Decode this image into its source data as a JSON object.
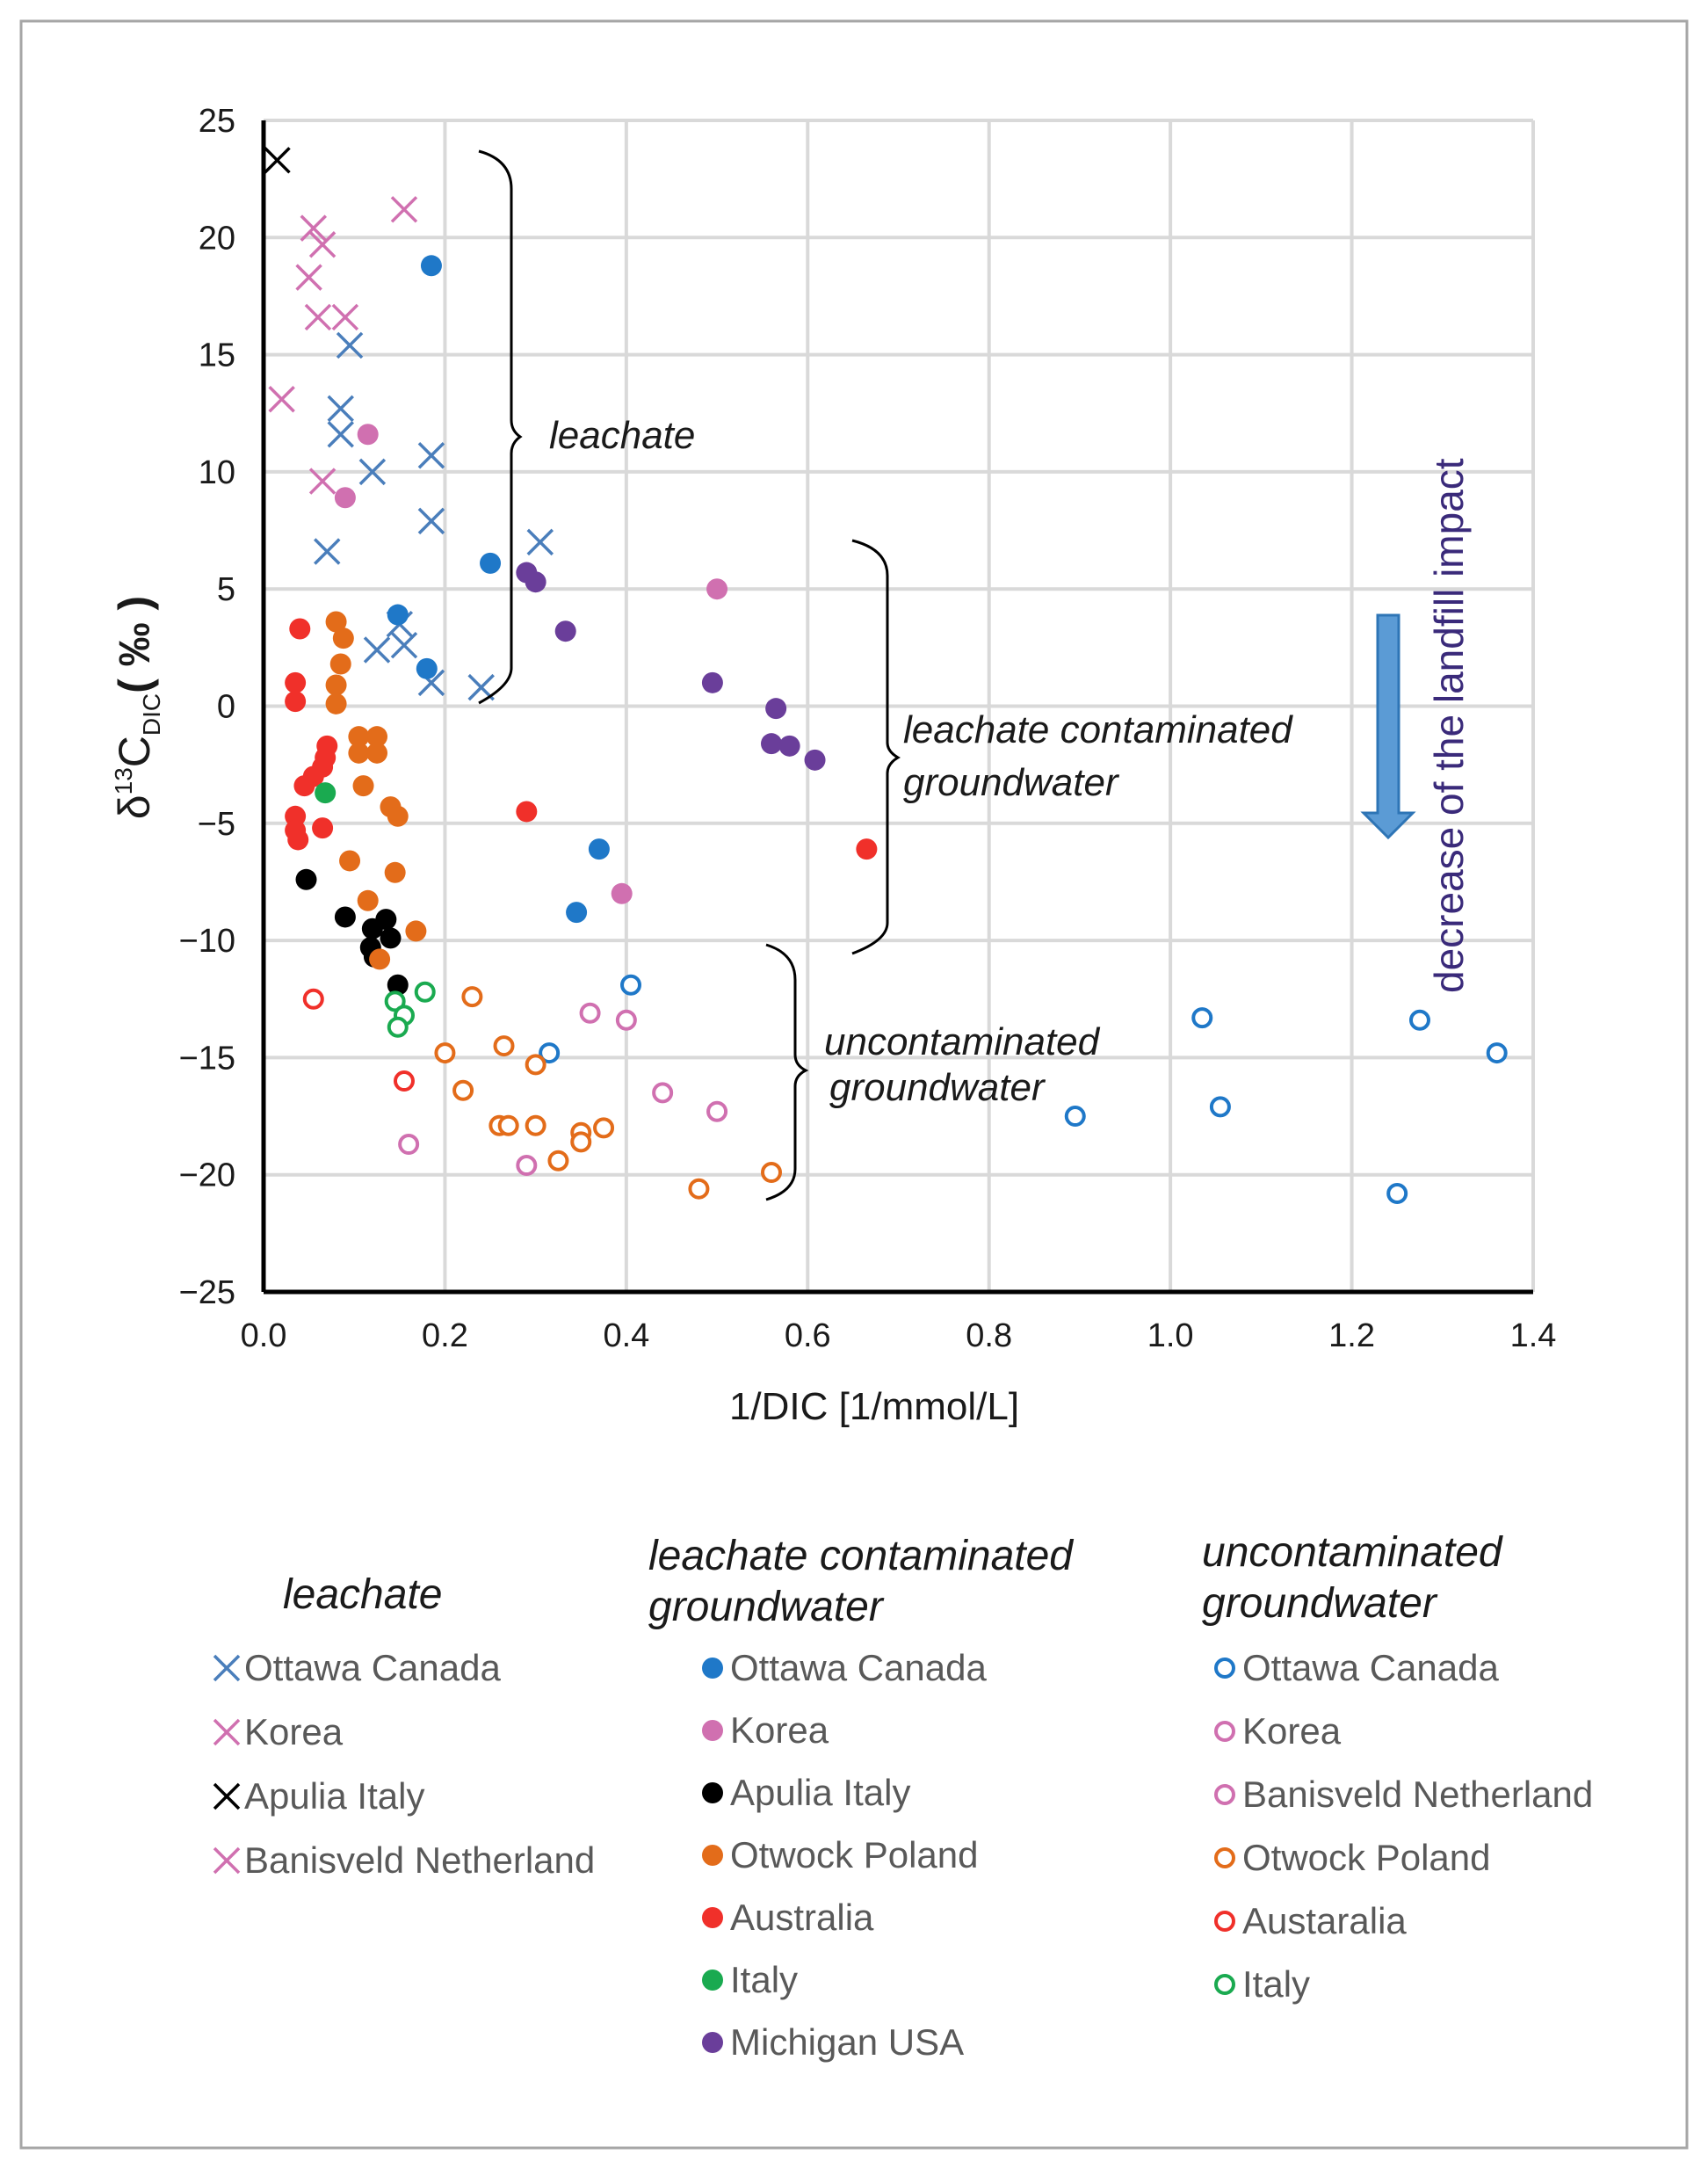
{
  "chart_data": {
    "type": "scatter",
    "xlabel": "1/DIC [1/mmol/L]",
    "ylabel_main": "δ",
    "ylabel_sup": "13",
    "ylabel_c": "C",
    "ylabel_sub": "DIC",
    "ylabel_unit": "( ‰ )",
    "xlim": [
      0.0,
      1.4
    ],
    "ylim": [
      -25,
      25
    ],
    "xticks": [
      "0.0",
      "0.2",
      "0.4",
      "0.6",
      "0.8",
      "1.0",
      "1.2",
      "1.4"
    ],
    "xtick_values": [
      0.0,
      0.2,
      0.4,
      0.6,
      0.8,
      1.0,
      1.2,
      1.4
    ],
    "yticks": [
      "25",
      "20",
      "15",
      "10",
      "5",
      "0",
      "-5",
      "-10",
      "-15",
      "-20",
      "-25"
    ],
    "ytick_values": [
      25,
      20,
      15,
      10,
      5,
      0,
      -5,
      -10,
      -15,
      -20,
      -25
    ],
    "series": [
      {
        "name": "Ottawa Canada",
        "group": "leachate",
        "marker": "x",
        "color": "#4a7ebb",
        "points": [
          [
            0.095,
            15.4
          ],
          [
            0.085,
            12.7
          ],
          [
            0.085,
            11.6
          ],
          [
            0.12,
            10.0
          ],
          [
            0.185,
            10.7
          ],
          [
            0.185,
            7.9
          ],
          [
            0.305,
            7.0
          ],
          [
            0.07,
            6.6
          ],
          [
            0.15,
            3.5
          ],
          [
            0.155,
            2.6
          ],
          [
            0.125,
            2.4
          ],
          [
            0.185,
            1.0
          ],
          [
            0.24,
            0.8
          ]
        ]
      },
      {
        "name": "Korea",
        "group": "leachate",
        "marker": "x",
        "color": "#d070b0",
        "points": [
          [
            0.055,
            20.4
          ],
          [
            0.065,
            19.7
          ],
          [
            0.05,
            18.3
          ],
          [
            0.06,
            16.6
          ],
          [
            0.09,
            16.6
          ],
          [
            0.065,
            9.6
          ],
          [
            0.155,
            21.2
          ]
        ]
      },
      {
        "name": "Apulia Italy",
        "group": "leachate",
        "marker": "x",
        "color": "#000000",
        "points": [
          [
            0.015,
            23.3
          ]
        ]
      },
      {
        "name": "Banisveld Netherland",
        "group": "leachate",
        "marker": "x",
        "color": "#d070b0",
        "points": [
          [
            0.02,
            13.1
          ]
        ]
      },
      {
        "name": "Ottawa Canada",
        "group": "leachate contaminated groundwater",
        "marker": "filled",
        "color": "#1f78c8",
        "points": [
          [
            0.185,
            18.8
          ],
          [
            0.25,
            6.1
          ],
          [
            0.148,
            3.9
          ],
          [
            0.18,
            1.6
          ],
          [
            0.37,
            -6.1
          ],
          [
            0.345,
            -8.8
          ]
        ]
      },
      {
        "name": "Korea",
        "group": "leachate contaminated groundwater",
        "marker": "filled",
        "color": "#d070b0",
        "points": [
          [
            0.115,
            11.6
          ],
          [
            0.09,
            8.9
          ],
          [
            0.5,
            5.0
          ],
          [
            0.395,
            -8.0
          ]
        ]
      },
      {
        "name": "Apulia Italy",
        "group": "leachate contaminated groundwater",
        "marker": "filled",
        "color": "#000000",
        "points": [
          [
            0.047,
            -7.4
          ],
          [
            0.09,
            -9.0
          ],
          [
            0.12,
            -9.5
          ],
          [
            0.135,
            -9.1
          ],
          [
            0.14,
            -9.9
          ],
          [
            0.118,
            -10.3
          ],
          [
            0.122,
            -10.7
          ],
          [
            0.148,
            -11.9
          ]
        ]
      },
      {
        "name": "Otwock Poland",
        "group": "leachate contaminated groundwater",
        "marker": "filled",
        "color": "#e36c1a",
        "points": [
          [
            0.08,
            3.6
          ],
          [
            0.088,
            2.9
          ],
          [
            0.085,
            1.8
          ],
          [
            0.08,
            0.9
          ],
          [
            0.08,
            0.1
          ],
          [
            0.105,
            -1.3
          ],
          [
            0.125,
            -1.3
          ],
          [
            0.105,
            -2.0
          ],
          [
            0.125,
            -2.0
          ],
          [
            0.11,
            -3.4
          ],
          [
            0.14,
            -4.3
          ],
          [
            0.148,
            -4.7
          ],
          [
            0.095,
            -6.6
          ],
          [
            0.145,
            -7.1
          ],
          [
            0.115,
            -8.3
          ],
          [
            0.168,
            -9.6
          ],
          [
            0.128,
            -10.8
          ]
        ]
      },
      {
        "name": "Australia",
        "group": "leachate contaminated groundwater",
        "marker": "filled",
        "color": "#f0302a",
        "points": [
          [
            0.04,
            3.3
          ],
          [
            0.035,
            1.0
          ],
          [
            0.035,
            0.2
          ],
          [
            0.07,
            -1.7
          ],
          [
            0.068,
            -2.2
          ],
          [
            0.065,
            -2.6
          ],
          [
            0.055,
            -3.0
          ],
          [
            0.045,
            -3.4
          ],
          [
            0.035,
            -4.7
          ],
          [
            0.035,
            -5.3
          ],
          [
            0.065,
            -5.2
          ],
          [
            0.038,
            -5.7
          ],
          [
            0.29,
            -4.5
          ],
          [
            0.665,
            -6.1
          ]
        ]
      },
      {
        "name": "Italy",
        "group": "leachate contaminated groundwater",
        "marker": "filled",
        "color": "#1aaa50",
        "points": [
          [
            0.068,
            -3.7
          ]
        ]
      },
      {
        "name": "Michigan USA",
        "group": "leachate contaminated groundwater",
        "marker": "filled",
        "color": "#6a3e9a",
        "points": [
          [
            0.29,
            5.7
          ],
          [
            0.3,
            5.3
          ],
          [
            0.333,
            3.2
          ],
          [
            0.495,
            1.0
          ],
          [
            0.565,
            -0.1
          ],
          [
            0.56,
            -1.6
          ],
          [
            0.58,
            -1.7
          ],
          [
            0.608,
            -2.3
          ]
        ]
      },
      {
        "name": "Ottawa Canada",
        "group": "uncontaminated groundwater",
        "marker": "open",
        "color": "#1f78c8",
        "points": [
          [
            0.405,
            -11.9
          ],
          [
            0.315,
            -14.8
          ],
          [
            0.895,
            -17.5
          ],
          [
            1.035,
            -13.3
          ],
          [
            1.055,
            -17.1
          ],
          [
            1.25,
            -20.8
          ],
          [
            1.275,
            -13.4
          ],
          [
            1.36,
            -14.8
          ]
        ]
      },
      {
        "name": "Korea",
        "group": "uncontaminated groundwater",
        "marker": "open",
        "color": "#d070b0",
        "points": [
          [
            0.36,
            -13.1
          ],
          [
            0.4,
            -13.4
          ],
          [
            0.44,
            -16.5
          ],
          [
            0.5,
            -17.3
          ],
          [
            0.29,
            -19.6
          ]
        ]
      },
      {
        "name": "Banisveld Netherland",
        "group": "uncontaminated groundwater",
        "marker": "open",
        "color": "#d070b0",
        "points": [
          [
            0.16,
            -18.7
          ]
        ]
      },
      {
        "name": "Otwock Poland",
        "group": "uncontaminated groundwater",
        "marker": "open",
        "color": "#e36c1a",
        "points": [
          [
            0.23,
            -12.4
          ],
          [
            0.2,
            -14.8
          ],
          [
            0.22,
            -16.4
          ],
          [
            0.265,
            -14.5
          ],
          [
            0.3,
            -15.3
          ],
          [
            0.26,
            -17.9
          ],
          [
            0.27,
            -17.9
          ],
          [
            0.3,
            -17.9
          ],
          [
            0.35,
            -18.2
          ],
          [
            0.35,
            -18.6
          ],
          [
            0.375,
            -18.0
          ],
          [
            0.325,
            -19.4
          ],
          [
            0.48,
            -20.6
          ],
          [
            0.56,
            -19.9
          ]
        ]
      },
      {
        "name": "Austaralia",
        "group": "uncontaminated groundwater",
        "marker": "open",
        "color": "#f0302a",
        "points": [
          [
            0.055,
            -12.5
          ],
          [
            0.155,
            -16.0
          ]
        ]
      },
      {
        "name": "Italy",
        "group": "uncontaminated groundwater",
        "marker": "open",
        "color": "#1aaa50",
        "points": [
          [
            0.178,
            -12.2
          ],
          [
            0.145,
            -12.6
          ],
          [
            0.155,
            -13.2
          ],
          [
            0.148,
            -13.7
          ]
        ]
      }
    ],
    "annotations": {
      "leachate": "leachate",
      "contaminated_line1": "leachate contaminated",
      "contaminated_line2": "groundwater",
      "uncontaminated_line1": "uncontaminated",
      "uncontaminated_line2": "groundwater",
      "arrow_text": "decrease of the landfill impact",
      "arrow_color": "#5b9bd5"
    }
  },
  "legend": {
    "columns": [
      {
        "title_lines": [
          "leachate"
        ],
        "items": [
          {
            "label": "Ottawa Canada",
            "marker": "x",
            "color": "#4a7ebb"
          },
          {
            "label": "Korea",
            "marker": "x",
            "color": "#d070b0"
          },
          {
            "label": "Apulia Italy",
            "marker": "x",
            "color": "#000000"
          },
          {
            "label": "Banisveld Netherland",
            "marker": "x",
            "color": "#d070b0"
          }
        ]
      },
      {
        "title_lines": [
          "leachate contaminated",
          "groundwater"
        ],
        "items": [
          {
            "label": "Ottawa Canada",
            "marker": "filled",
            "color": "#1f78c8"
          },
          {
            "label": "Korea",
            "marker": "filled",
            "color": "#d070b0"
          },
          {
            "label": "Apulia Italy",
            "marker": "filled",
            "color": "#000000"
          },
          {
            "label": "Otwock Poland",
            "marker": "filled",
            "color": "#e36c1a"
          },
          {
            "label": "Australia",
            "marker": "filled",
            "color": "#f0302a"
          },
          {
            "label": "Italy",
            "marker": "filled",
            "color": "#1aaa50"
          },
          {
            "label": "Michigan USA",
            "marker": "filled",
            "color": "#6a3e9a"
          }
        ]
      },
      {
        "title_lines": [
          "uncontaminated",
          "groundwater"
        ],
        "items": [
          {
            "label": "Ottawa Canada",
            "marker": "open",
            "color": "#1f78c8"
          },
          {
            "label": "Korea",
            "marker": "open",
            "color": "#d070b0"
          },
          {
            "label": "Banisveld Netherland",
            "marker": "open",
            "color": "#d070b0"
          },
          {
            "label": "Otwock Poland",
            "marker": "open",
            "color": "#e36c1a"
          },
          {
            "label": "Austaralia",
            "marker": "open",
            "color": "#f0302a"
          },
          {
            "label": "Italy",
            "marker": "open",
            "color": "#1aaa50"
          }
        ]
      }
    ]
  }
}
